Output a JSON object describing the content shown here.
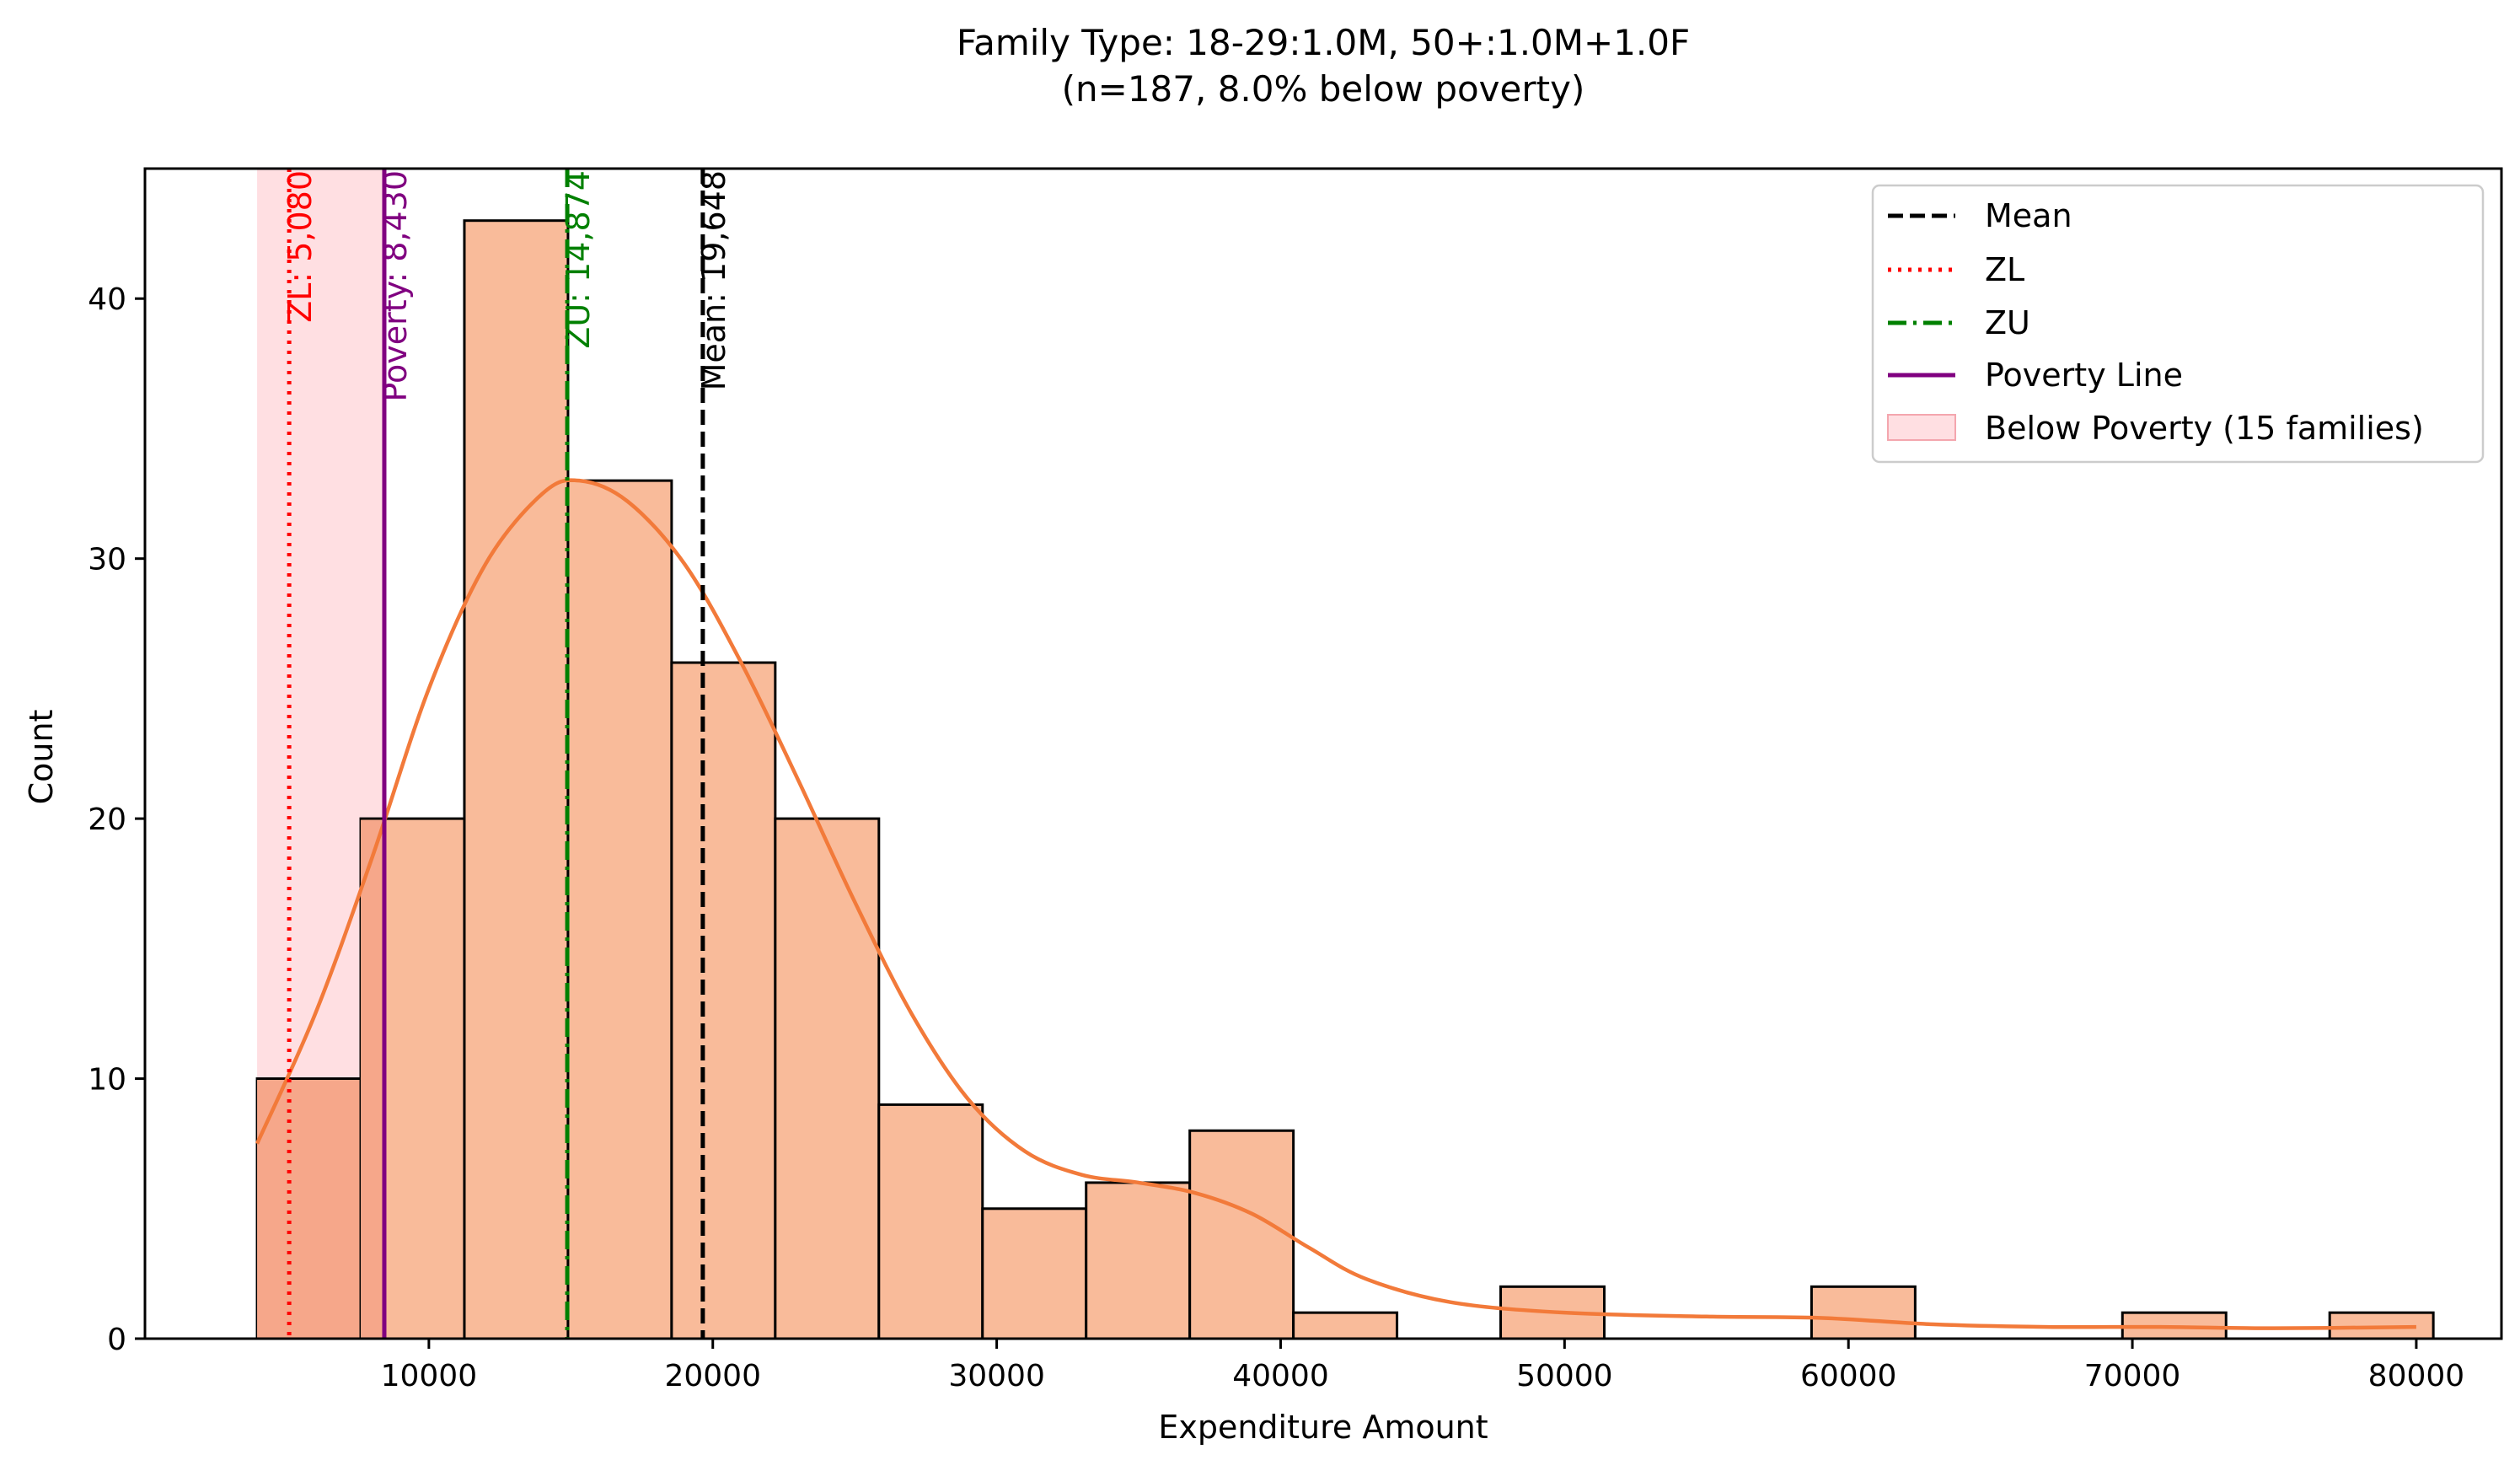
{
  "chart_data": {
    "type": "histogram",
    "title_line1": "Family Type: 18-29:1.0M, 50+:1.0M+1.0F",
    "title_line2": "(n=187, 8.0% below poverty)",
    "xlabel": "Expenditure Amount",
    "ylabel": "Count",
    "xlim": [
      0,
      83000
    ],
    "ylim": [
      0,
      45
    ],
    "xticks": [
      10000,
      20000,
      30000,
      40000,
      50000,
      60000,
      70000,
      80000
    ],
    "xtick_labels": [
      "10000",
      "20000",
      "30000",
      "40000",
      "50000",
      "60000",
      "70000",
      "80000"
    ],
    "yticks": [
      0,
      10,
      20,
      30,
      40
    ],
    "ytick_labels": [
      "0",
      "10",
      "20",
      "30",
      "40"
    ],
    "bin_edges": [
      3950,
      7600,
      11250,
      14900,
      18550,
      22200,
      25850,
      29500,
      33150,
      36800,
      40450,
      44100,
      47750,
      51400,
      55050,
      58700,
      62350,
      66000,
      69650,
      73300,
      76950,
      80600
    ],
    "counts": [
      10,
      20,
      43,
      33,
      26,
      20,
      9,
      5,
      6,
      8,
      1,
      0,
      2,
      0,
      0,
      2,
      0,
      0,
      1,
      0,
      1
    ],
    "kde": {
      "x": [
        3950,
        6000,
        8000,
        10000,
        12000,
        14000,
        15300,
        17000,
        19000,
        21000,
        23000,
        25000,
        27000,
        29000,
        31000,
        33000,
        35000,
        37000,
        39000,
        41000,
        43000,
        46000,
        50000,
        55000,
        59000,
        63000,
        67000,
        71000,
        75000,
        80000
      ],
      "y": [
        7.5,
        12.5,
        18.5,
        25.0,
        29.8,
        32.5,
        33.0,
        32.2,
        29.8,
        26.0,
        21.5,
        16.8,
        12.5,
        9.2,
        7.2,
        6.3,
        6.0,
        5.6,
        4.8,
        3.5,
        2.3,
        1.4,
        1.0,
        0.85,
        0.8,
        0.55,
        0.45,
        0.45,
        0.4,
        0.45
      ]
    },
    "vlines": {
      "mean": {
        "value": 19648,
        "label": "Mean: 19,648",
        "color": "#000000"
      },
      "zl": {
        "value": 5080,
        "label": "ZL: 5,080",
        "color": "#ff0000"
      },
      "zu": {
        "value": 14874,
        "label": "ZU: 14,874",
        "color": "#008000"
      },
      "poverty": {
        "value": 8430,
        "label": "Poverty: 8,430",
        "color": "#800080"
      }
    },
    "poverty_span": [
      3950,
      8430
    ],
    "legend": {
      "location": "upper right",
      "items": [
        "Mean",
        "ZL",
        "ZU",
        "Poverty Line",
        "Below Poverty (15 families)"
      ]
    },
    "colors": {
      "bar_fill": "#f9bb9a",
      "bar_fill_overlap": "#f6a78a",
      "kde": "#f27a3a",
      "span_fill": "#ffdfe2"
    }
  }
}
